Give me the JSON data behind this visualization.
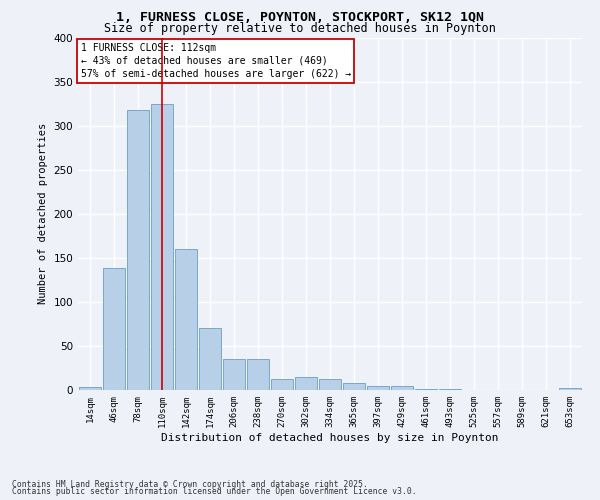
{
  "title_line1": "1, FURNESS CLOSE, POYNTON, STOCKPORT, SK12 1QN",
  "title_line2": "Size of property relative to detached houses in Poynton",
  "xlabel": "Distribution of detached houses by size in Poynton",
  "ylabel": "Number of detached properties",
  "categories": [
    "14sqm",
    "46sqm",
    "78sqm",
    "110sqm",
    "142sqm",
    "174sqm",
    "206sqm",
    "238sqm",
    "270sqm",
    "302sqm",
    "334sqm",
    "365sqm",
    "397sqm",
    "429sqm",
    "461sqm",
    "493sqm",
    "525sqm",
    "557sqm",
    "589sqm",
    "621sqm",
    "653sqm"
  ],
  "values": [
    3,
    139,
    318,
    324,
    160,
    70,
    35,
    35,
    13,
    15,
    13,
    8,
    5,
    5,
    1,
    1,
    0,
    0,
    0,
    0,
    2
  ],
  "bar_color": "#b8cfe8",
  "bar_edge_color": "#6a9fc8",
  "property_bin_index": 3,
  "vline_color": "#cc0000",
  "annotation_text": "1 FURNESS CLOSE: 112sqm\n← 43% of detached houses are smaller (469)\n57% of semi-detached houses are larger (622) →",
  "annotation_box_color": "#ffffff",
  "annotation_box_edge_color": "#cc0000",
  "footer_line1": "Contains HM Land Registry data © Crown copyright and database right 2025.",
  "footer_line2": "Contains public sector information licensed under the Open Government Licence v3.0.",
  "bg_color": "#eef2f8",
  "grid_color": "#ffffff",
  "ylim": [
    0,
    400
  ],
  "yticks": [
    0,
    50,
    100,
    150,
    200,
    250,
    300,
    350,
    400
  ]
}
